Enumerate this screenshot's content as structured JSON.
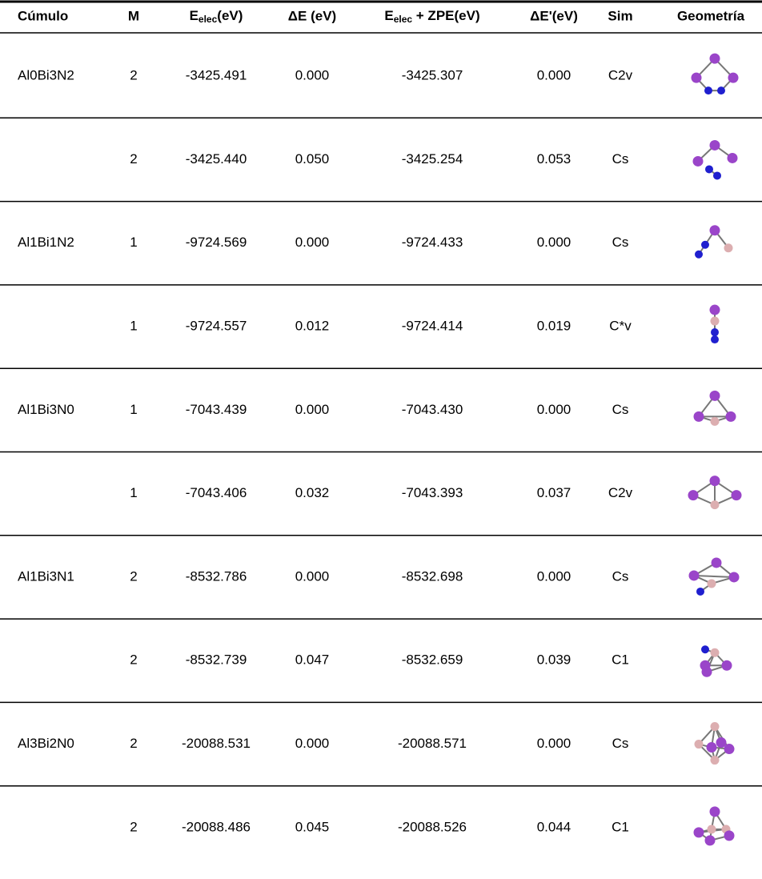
{
  "table": {
    "header": [
      "Cúmulo",
      "M",
      {
        "main": "E",
        "sub": "elec",
        "rest": "(eV)"
      },
      "ΔE (eV)",
      {
        "main": "E",
        "sub": "elec",
        "rest": " + ZPE(eV)"
      },
      "ΔE'(eV)",
      "Sim",
      "Geometría"
    ],
    "rows": [
      [
        "Al0Bi3N2",
        "2",
        "-3425.491",
        "0.000",
        "-3425.307",
        "0.000",
        "C2v"
      ],
      [
        null,
        "2",
        "-3425.440",
        "0.050",
        "-3425.254",
        "0.053",
        "Cs"
      ],
      [
        "Al1Bi1N2",
        "1",
        "-9724.569",
        "0.000",
        "-9724.433",
        "0.000",
        "Cs"
      ],
      [
        null,
        "1",
        "-9724.557",
        "0.012",
        "-9724.414",
        "0.019",
        "C*v"
      ],
      [
        "Al1Bi3N0",
        "1",
        "-7043.439",
        "0.000",
        "-7043.430",
        "0.000",
        "Cs"
      ],
      [
        null,
        "1",
        "-7043.406",
        "0.032",
        "-7043.393",
        "0.037",
        "C2v"
      ],
      [
        "Al1Bi3N1",
        "2",
        "-8532.786",
        "0.000",
        "-8532.698",
        "0.000",
        "Cs"
      ],
      [
        null,
        "2",
        "-8532.739",
        "0.047",
        "-8532.659",
        "0.039",
        "C1"
      ],
      [
        "Al3Bi2N0",
        "2",
        "-20088.531",
        "0.000",
        "-20088.571",
        "0.000",
        "Cs"
      ],
      [
        null,
        "2",
        "-20088.486",
        "0.045",
        "-20088.526",
        "0.044",
        "C1"
      ]
    ]
  }
}
